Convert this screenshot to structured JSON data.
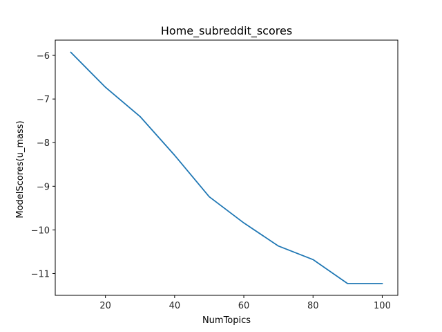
{
  "chart_data": {
    "type": "line",
    "title": "Home_subreddit_scores",
    "xlabel": "NumTopics",
    "ylabel": "ModelScores(u_mass)",
    "x": [
      10,
      20,
      30,
      40,
      50,
      60,
      70,
      80,
      90,
      100
    ],
    "series": [
      {
        "values": [
          -5.93,
          -6.73,
          -7.4,
          -8.29,
          -9.24,
          -9.84,
          -10.37,
          -10.68,
          -11.23,
          -11.23
        ]
      }
    ],
    "xlim": [
      5.5,
      104.5
    ],
    "ylim": [
      -11.5,
      -5.65
    ],
    "xticks": [
      20,
      40,
      60,
      80,
      100
    ],
    "yticks": [
      -6,
      -7,
      -8,
      -9,
      -10,
      -11
    ],
    "grid": false,
    "line_color": "#1f77b4"
  }
}
